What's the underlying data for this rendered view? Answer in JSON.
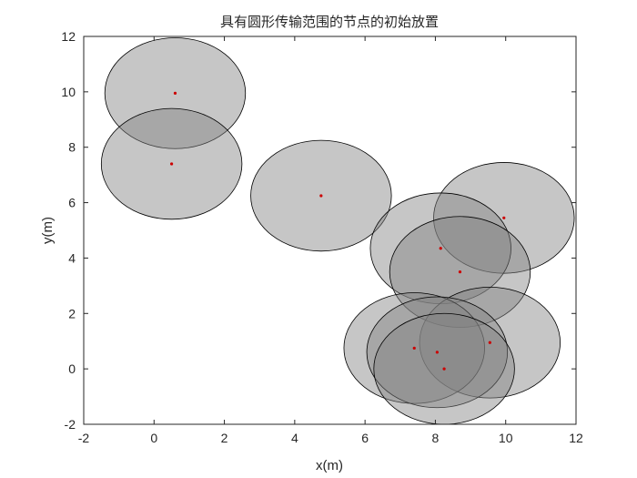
{
  "chart_data": {
    "type": "scatter",
    "title": "具有圆形传输范围的节点的初始放置",
    "xlabel": "x(m)",
    "ylabel": "y(m)",
    "xlim": [
      -2,
      12
    ],
    "ylim": [
      -2,
      12
    ],
    "xticks": [
      -2,
      0,
      2,
      4,
      6,
      8,
      10,
      12
    ],
    "yticks": [
      -2,
      0,
      2,
      4,
      6,
      8,
      10,
      12
    ],
    "grid": false,
    "legend": "none",
    "transmission_radius": 2,
    "colors": {
      "node": "#cc0000",
      "range_fill": "#808080",
      "range_stroke": "#000000"
    },
    "nodes": [
      {
        "x": 0.6,
        "y": 9.95
      },
      {
        "x": 0.5,
        "y": 7.4
      },
      {
        "x": 4.75,
        "y": 6.25
      },
      {
        "x": 9.95,
        "y": 5.45
      },
      {
        "x": 8.15,
        "y": 4.35
      },
      {
        "x": 8.7,
        "y": 3.5
      },
      {
        "x": 9.55,
        "y": 0.95
      },
      {
        "x": 7.4,
        "y": 0.75
      },
      {
        "x": 8.05,
        "y": 0.6
      },
      {
        "x": 8.25,
        "y": 0.0
      }
    ]
  }
}
